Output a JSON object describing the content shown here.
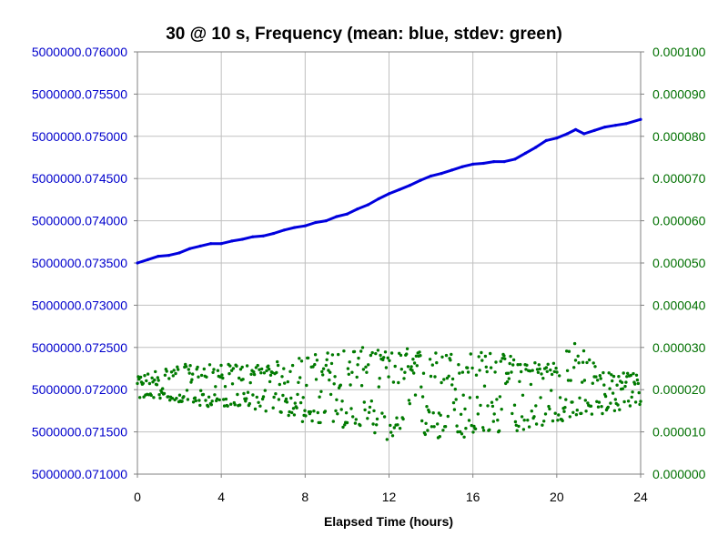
{
  "chart_data": {
    "type": "line",
    "title": "30 @ 10 s, Frequency (mean: blue, stdev: green)",
    "xlabel": "Elapsed Time (hours)",
    "xlim": [
      0,
      24
    ],
    "x_ticks": [
      "0",
      "4",
      "8",
      "12",
      "16",
      "20",
      "24"
    ],
    "ylim_left": [
      5000000.071,
      5000000.076
    ],
    "y_ticks_left": [
      "5000000.071000",
      "5000000.071500",
      "5000000.072000",
      "5000000.072500",
      "5000000.073000",
      "5000000.073500",
      "5000000.074000",
      "5000000.074500",
      "5000000.075000",
      "5000000.075500",
      "5000000.076000"
    ],
    "ylim_right": [
      0,
      0.0001
    ],
    "y_ticks_right": [
      "0.000000",
      "0.000010",
      "0.000020",
      "0.000030",
      "0.000040",
      "0.000050",
      "0.000060",
      "0.000070",
      "0.000080",
      "0.000090",
      "0.000100"
    ],
    "grid": true,
    "colors": {
      "mean": "#0000dd",
      "stdev": "#007a00",
      "grid": "#c0c0c0",
      "left_axis": "#0000cc",
      "right_axis": "#007000"
    },
    "series": [
      {
        "axis": "left",
        "x": [
          0,
          0.5,
          1,
          1.5,
          2,
          2.5,
          3,
          3.5,
          4,
          4.5,
          5,
          5.5,
          6,
          6.5,
          7,
          7.5,
          8,
          8.5,
          9,
          9.5,
          10,
          10.5,
          11,
          11.5,
          12,
          12.5,
          13,
          13.5,
          14,
          14.5,
          15,
          15.5,
          16,
          16.5,
          17,
          17.5,
          18,
          18.5,
          19,
          19.5,
          20,
          20.5,
          20.9,
          21.3,
          21.8,
          22.3,
          22.8,
          23.3,
          24
        ],
        "values": [
          5000000.0735,
          5000000.07354,
          5000000.07358,
          5000000.07359,
          5000000.07362,
          5000000.07367,
          5000000.0737,
          5000000.07373,
          5000000.07373,
          5000000.07376,
          5000000.07378,
          5000000.07381,
          5000000.07382,
          5000000.07385,
          5000000.07389,
          5000000.07392,
          5000000.07394,
          5000000.07398,
          5000000.074,
          5000000.07405,
          5000000.07408,
          5000000.07414,
          5000000.07419,
          5000000.07426,
          5000000.07432,
          5000000.07437,
          5000000.07442,
          5000000.07448,
          5000000.07453,
          5000000.07456,
          5000000.0746,
          5000000.07464,
          5000000.07467,
          5000000.07468,
          5000000.0747,
          5000000.0747,
          5000000.07473,
          5000000.0748,
          5000000.07487,
          5000000.07495,
          5000000.07498,
          5000000.07503,
          5000000.07508,
          5000000.07503,
          5000000.07507,
          5000000.07511,
          5000000.07513,
          5000000.07515,
          5000000.0752
        ]
      },
      {
        "axis": "right",
        "x": [
          0,
          1,
          2,
          3,
          4,
          5,
          6,
          7,
          8,
          9,
          10,
          11,
          12,
          13,
          14,
          15,
          16,
          17,
          18,
          19,
          20,
          21,
          22,
          23,
          24
        ],
        "values": [
          2e-05,
          2e-05,
          2e-05,
          2e-05,
          2e-05,
          2e-05,
          2e-05,
          2e-05,
          2e-05,
          2e-05,
          2e-05,
          2e-05,
          2e-05,
          2e-05,
          2e-05,
          2e-05,
          2e-05,
          2e-05,
          2e-05,
          2e-05,
          2e-05,
          2e-05,
          2e-05,
          2e-05,
          2e-05
        ],
        "spread_min": [
          1.8e-05,
          1.8e-05,
          1.7e-05,
          1.6e-05,
          1.6e-05,
          1.6e-05,
          1.5e-05,
          1.4e-05,
          1.2e-05,
          1.1e-05,
          1.1e-05,
          1.1e-05,
          7e-06,
          9e-06,
          8e-06,
          8e-06,
          8e-06,
          9e-06,
          1e-05,
          1.1e-05,
          1.2e-05,
          1.3e-05,
          1.4e-05,
          1.5e-05,
          1.6e-05
        ],
        "spread_max": [
          2.3e-05,
          2.5e-05,
          2.6e-05,
          2.6e-05,
          2.6e-05,
          2.6e-05,
          2.6e-05,
          2.7e-05,
          2.8e-05,
          2.9e-05,
          3e-05,
          3e-05,
          2.9e-05,
          3e-05,
          2.9e-05,
          2.9e-05,
          2.9e-05,
          2.9e-05,
          2.8e-05,
          2.7e-05,
          2.7e-05,
          3.2e-05,
          2.5e-05,
          2.4e-05,
          2.4e-05
        ]
      }
    ]
  }
}
